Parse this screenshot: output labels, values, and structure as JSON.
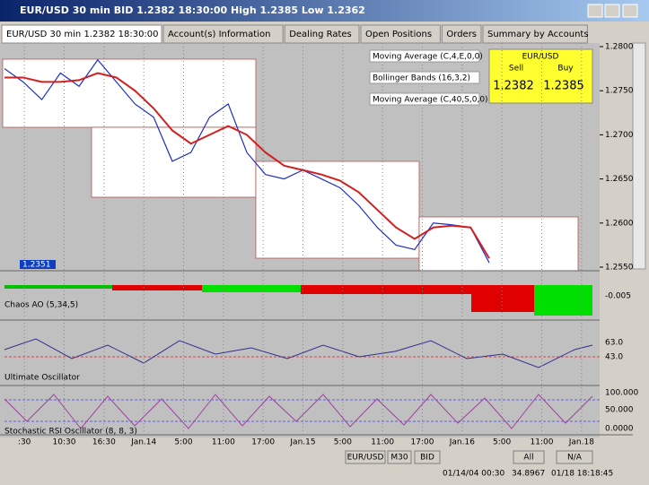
{
  "window": {
    "title": "EUR/USD 30 min BID 1.2382 18:30:00 High 1.2385 Low 1.2362"
  },
  "tabs": [
    "EUR/USD 30 min 1.2382 18:30:00",
    "Account(s) Information",
    "Dealing Rates",
    "Open Positions",
    "Orders",
    "Summary by Accounts"
  ],
  "chart": {
    "ylim": [
      1.255,
      1.28
    ],
    "price_ticks": [
      {
        "value": 1.28,
        "label": "1.2800"
      },
      {
        "value": 1.275,
        "label": "1.2750"
      },
      {
        "value": 1.27,
        "label": "1.2700"
      },
      {
        "value": 1.265,
        "label": "1.2650"
      },
      {
        "value": 1.26,
        "label": "1.2600"
      },
      {
        "value": 1.255,
        "label": "1.2550"
      }
    ],
    "annotations": [
      "Moving Average (C,4,E,0,0)",
      "Bollinger Bands (16,3,2)",
      "Moving Average (C,40,S,0,0)"
    ],
    "quote": {
      "symbol": "EUR/USD",
      "sell_label": "Sell",
      "buy_label": "Buy",
      "sell": "1.2382",
      "buy": "1.2385"
    },
    "marker": "1.2351",
    "close": [
      1.2775,
      1.276,
      1.274,
      1.277,
      1.2755,
      1.2785,
      1.276,
      1.2735,
      1.272,
      1.267,
      1.268,
      1.272,
      1.2735,
      1.268,
      1.2655,
      1.265,
      1.266,
      1.265,
      1.264,
      1.262,
      1.2595,
      1.2575,
      1.257,
      1.26,
      1.2598,
      1.2595,
      1.2555
    ],
    "ma": [
      1.2765,
      1.2765,
      1.276,
      1.276,
      1.2762,
      1.277,
      1.2765,
      1.275,
      1.273,
      1.2705,
      1.269,
      1.27,
      1.271,
      1.27,
      1.268,
      1.2665,
      1.266,
      1.2655,
      1.2648,
      1.2635,
      1.2615,
      1.2595,
      1.2582,
      1.2595,
      1.2597,
      1.2595,
      1.256
    ]
  },
  "indicators": [
    {
      "name": "Chaos AO (5,34,5)",
      "ticks": [
        "-0.005"
      ]
    },
    {
      "name": "Ultimate Oscillator",
      "ticks": [
        "63.0",
        "43.0"
      ]
    },
    {
      "name": "Stochastic RSI Oscillator (8, 8, 3)",
      "ticks": [
        "100.000",
        "50.000",
        "0.0000"
      ]
    }
  ],
  "time_labels": [
    ":30",
    "10:30",
    "16:30",
    "Jan.14",
    "5:00",
    "11:00",
    "17:00",
    "Jan.15",
    "5:00",
    "11:00",
    "17:00",
    "Jan.16",
    "5:00",
    "11:00",
    "Jan.18"
  ],
  "toolbar": {
    "buttons": [
      "EUR/USD",
      "M30",
      "BID",
      "All",
      "N/A"
    ]
  },
  "status": {
    "date": "01/14/04 00:30",
    "value": "34.8967",
    "time": "01/18 18:18:45"
  }
}
